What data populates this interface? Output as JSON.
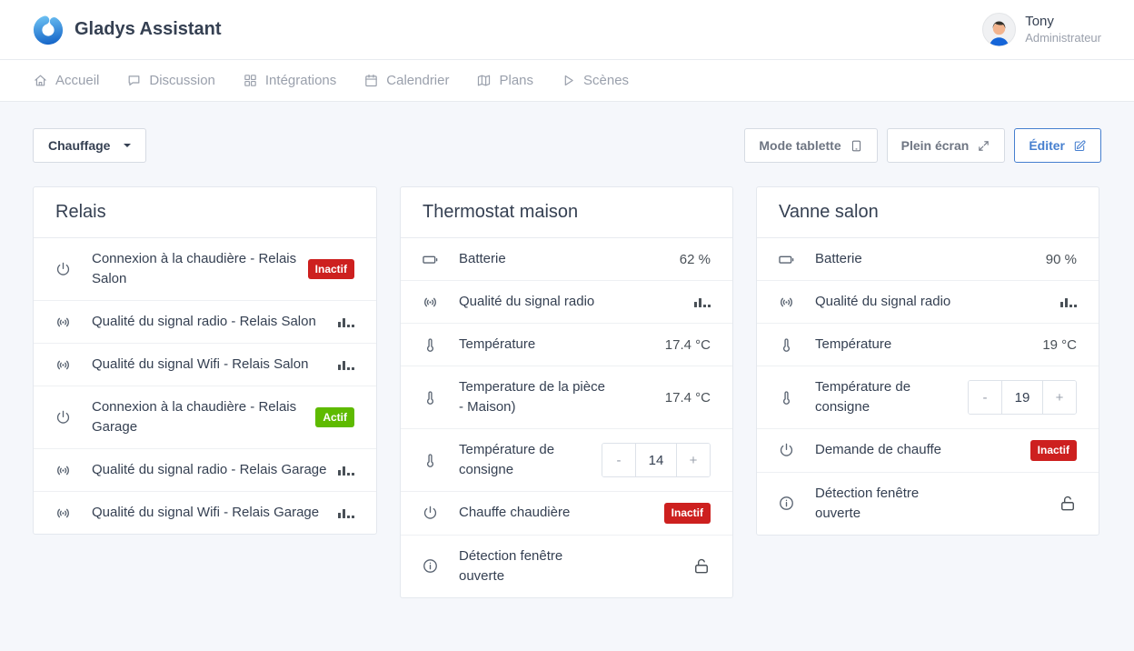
{
  "header": {
    "app_title": "Gladys Assistant",
    "user": {
      "name": "Tony",
      "role": "Administrateur"
    }
  },
  "nav": {
    "items": [
      {
        "label": "Accueil",
        "icon": "home-icon"
      },
      {
        "label": "Discussion",
        "icon": "chat-icon"
      },
      {
        "label": "Intégrations",
        "icon": "grid-icon"
      },
      {
        "label": "Calendrier",
        "icon": "calendar-icon"
      },
      {
        "label": "Plans",
        "icon": "map-icon"
      },
      {
        "label": "Scènes",
        "icon": "play-icon"
      }
    ]
  },
  "toolbar": {
    "dashboard_selector": "Chauffage",
    "tablet_mode_label": "Mode tablette",
    "fullscreen_label": "Plein écran",
    "edit_label": "Éditer"
  },
  "colors": {
    "accent_blue": "#467fcf",
    "badge_red": "#cd201f",
    "badge_green": "#5eba00",
    "page_bg": "#f5f7fb"
  },
  "cards": [
    {
      "title": "Relais",
      "rows": [
        {
          "icon": "power-icon",
          "label": "Connexion à la chaudière - Relais Salon",
          "value_type": "badge",
          "badge": "Inactif",
          "badge_color": "red"
        },
        {
          "icon": "signal-icon",
          "label": "Qualité du signal radio - Relais Salon",
          "value_type": "signal"
        },
        {
          "icon": "signal-icon",
          "label": "Qualité du signal Wifi - Relais Salon",
          "value_type": "signal"
        },
        {
          "icon": "power-icon",
          "label": "Connexion à la chaudière - Relais Garage",
          "value_type": "badge",
          "badge": "Actif",
          "badge_color": "green"
        },
        {
          "icon": "signal-icon",
          "label": "Qualité du signal radio - Relais Garage",
          "value_type": "signal"
        },
        {
          "icon": "signal-icon",
          "label": "Qualité du signal Wifi - Relais Garage",
          "value_type": "signal"
        }
      ]
    },
    {
      "title": "Thermostat maison",
      "rows": [
        {
          "icon": "battery-icon",
          "label": "Batterie",
          "value_type": "text",
          "value": "62 %"
        },
        {
          "icon": "signal-icon",
          "label": "Qualité du signal radio",
          "value_type": "signal"
        },
        {
          "icon": "thermometer-icon",
          "label": "Température",
          "value_type": "text",
          "value": "17.4 °C"
        },
        {
          "icon": "thermometer-icon",
          "label": "Temperature de la pièce - Maison)",
          "value_type": "text",
          "value": "17.4 °C"
        },
        {
          "icon": "thermometer-icon",
          "label": "Température de consigne",
          "value_type": "stepper",
          "stepper": {
            "minus": "-",
            "value": "14",
            "plus": "+"
          }
        },
        {
          "icon": "power-icon",
          "label": "Chauffe chaudière",
          "value_type": "badge",
          "badge": "Inactif",
          "badge_color": "red"
        },
        {
          "icon": "info-icon",
          "label": "Détection fenêtre ouverte",
          "value_type": "icon",
          "value_icon": "unlock-icon"
        }
      ]
    },
    {
      "title": "Vanne salon",
      "rows": [
        {
          "icon": "battery-icon",
          "label": "Batterie",
          "value_type": "text",
          "value": "90 %"
        },
        {
          "icon": "signal-icon",
          "label": "Qualité du signal radio",
          "value_type": "signal"
        },
        {
          "icon": "thermometer-icon",
          "label": "Température",
          "value_type": "text",
          "value": "19 °C"
        },
        {
          "icon": "thermometer-icon",
          "label": "Température de consigne",
          "value_type": "stepper",
          "stepper": {
            "minus": "-",
            "value": "19",
            "plus": "+"
          }
        },
        {
          "icon": "power-icon",
          "label": "Demande de chauffe",
          "value_type": "badge",
          "badge": "Inactif",
          "badge_color": "red"
        },
        {
          "icon": "info-icon",
          "label": "Détection fenêtre ouverte",
          "value_type": "icon",
          "value_icon": "unlock-icon"
        }
      ]
    }
  ]
}
